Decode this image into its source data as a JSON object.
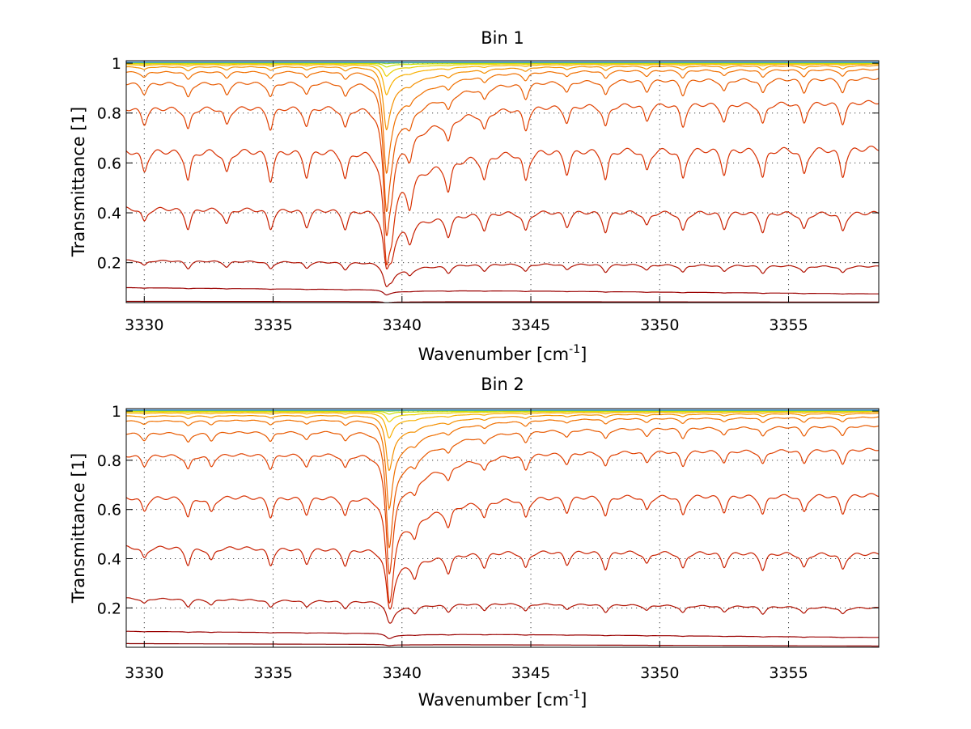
{
  "chart_data": [
    {
      "type": "line",
      "title": "Bin 1",
      "xlabel": "Wavenumber [cm",
      "xlabel_sup": "-1",
      "xlabel_end": "]",
      "ylabel": "Transmittance [1]",
      "xlim": [
        3329.3,
        3358.5
      ],
      "ylim": [
        0.04,
        1.01
      ],
      "xticks": [
        3330,
        3335,
        3340,
        3345,
        3350,
        3355
      ],
      "xtick_labels": [
        "3330",
        "3335",
        "3340",
        "3345",
        "3350",
        "3355"
      ],
      "yticks": [
        0.2,
        0.4,
        0.6,
        0.8,
        1
      ],
      "ytick_labels": [
        "0.2",
        "0.4",
        "0.6",
        "0.8",
        "1"
      ],
      "grid": true,
      "main_line": {
        "center": 3339.4,
        "width": 0.15,
        "tail": 1.8
      },
      "weak_lines": [
        3330.0,
        3331.7,
        3333.2,
        3334.9,
        3336.3,
        3337.8,
        3339.6,
        3340.3,
        3341.8,
        3343.2,
        3344.8,
        3346.4,
        3347.9,
        3349.5,
        3350.9,
        3352.5,
        3354.0,
        3355.6,
        3357.1
      ],
      "series": [
        {
          "base": [
            0.045,
            0.042
          ],
          "depth": 0.0,
          "main": 0.005,
          "color": "#8b0000"
        },
        {
          "base": [
            0.1,
            0.075
          ],
          "depth": 0.002,
          "main": 0.02,
          "color": "#9a0000"
        },
        {
          "base": [
            0.21,
            0.185
          ],
          "depth": 0.03,
          "main": 0.09,
          "color": "#b01000"
        },
        {
          "base": [
            0.42,
            0.4
          ],
          "depth": 0.08,
          "main": 0.22,
          "color": "#c82000"
        },
        {
          "base": [
            0.65,
            0.66
          ],
          "depth": 0.12,
          "main": 0.43,
          "color": "#d83000"
        },
        {
          "base": [
            0.82,
            0.845
          ],
          "depth": 0.09,
          "main": 0.49,
          "color": "#e04000"
        },
        {
          "base": [
            0.92,
            0.94
          ],
          "depth": 0.06,
          "main": 0.5,
          "color": "#e85a00"
        },
        {
          "base": [
            0.965,
            0.975
          ],
          "depth": 0.03,
          "main": 0.4,
          "color": "#f07000"
        },
        {
          "base": [
            0.985,
            0.99
          ],
          "depth": 0.015,
          "main": 0.25,
          "color": "#f49000"
        },
        {
          "base": [
            0.994,
            0.996
          ],
          "depth": 0.006,
          "main": 0.12,
          "color": "#f8b000"
        },
        {
          "base": [
            0.998,
            0.999
          ],
          "depth": 0.003,
          "main": 0.05,
          "color": "#e8d000"
        },
        {
          "base": [
            1.0,
            1.0
          ],
          "depth": 0.001,
          "main": 0.015,
          "color": "#c8e000"
        },
        {
          "base": [
            1.002,
            1.002
          ],
          "depth": 0.0,
          "main": 0.004,
          "color": "#90d040"
        },
        {
          "base": [
            1.003,
            1.003
          ],
          "depth": 0.0,
          "main": 0.0,
          "color": "#40c0a0"
        },
        {
          "base": [
            1.004,
            1.004
          ],
          "depth": 0.0,
          "main": 0.0,
          "color": "#2080d0"
        }
      ]
    },
    {
      "type": "line",
      "title": "Bin 2",
      "xlabel": "Wavenumber [cm",
      "xlabel_sup": "-1",
      "xlabel_end": "]",
      "ylabel": "Transmittance [1]",
      "xlim": [
        3329.3,
        3358.5
      ],
      "ylim": [
        0.04,
        1.01
      ],
      "xticks": [
        3330,
        3335,
        3340,
        3345,
        3350,
        3355
      ],
      "xtick_labels": [
        "3330",
        "3335",
        "3340",
        "3345",
        "3350",
        "3355"
      ],
      "yticks": [
        0.2,
        0.4,
        0.6,
        0.8,
        1
      ],
      "ytick_labels": [
        "0.2",
        "0.4",
        "0.6",
        "0.8",
        "1"
      ],
      "grid": true,
      "main_line": {
        "center": 3339.5,
        "width": 0.15,
        "tail": 1.8
      },
      "weak_lines": [
        3330.0,
        3331.7,
        3332.6,
        3334.9,
        3336.3,
        3337.8,
        3339.6,
        3340.5,
        3341.8,
        3343.2,
        3344.8,
        3346.4,
        3347.9,
        3349.5,
        3350.9,
        3352.5,
        3354.0,
        3355.6,
        3357.1
      ],
      "series": [
        {
          "base": [
            0.055,
            0.045
          ],
          "depth": 0.0,
          "main": 0.005,
          "color": "#8b0000"
        },
        {
          "base": [
            0.105,
            0.08
          ],
          "depth": 0.002,
          "main": 0.02,
          "color": "#9a0000"
        },
        {
          "base": [
            0.24,
            0.2
          ],
          "depth": 0.03,
          "main": 0.07,
          "color": "#b01000"
        },
        {
          "base": [
            0.45,
            0.42
          ],
          "depth": 0.07,
          "main": 0.2,
          "color": "#c82000"
        },
        {
          "base": [
            0.65,
            0.66
          ],
          "depth": 0.08,
          "main": 0.38,
          "color": "#d83000"
        },
        {
          "base": [
            0.82,
            0.845
          ],
          "depth": 0.06,
          "main": 0.45,
          "color": "#e04000"
        },
        {
          "base": [
            0.91,
            0.94
          ],
          "depth": 0.04,
          "main": 0.45,
          "color": "#e85a00"
        },
        {
          "base": [
            0.96,
            0.975
          ],
          "depth": 0.02,
          "main": 0.35,
          "color": "#f07000"
        },
        {
          "base": [
            0.98,
            0.99
          ],
          "depth": 0.01,
          "main": 0.22,
          "color": "#f49000"
        },
        {
          "base": [
            0.992,
            0.996
          ],
          "depth": 0.005,
          "main": 0.1,
          "color": "#f8b000"
        },
        {
          "base": [
            0.997,
            0.999
          ],
          "depth": 0.002,
          "main": 0.04,
          "color": "#e8d000"
        },
        {
          "base": [
            1.0,
            1.0
          ],
          "depth": 0.001,
          "main": 0.012,
          "color": "#c8e000"
        },
        {
          "base": [
            1.002,
            1.002
          ],
          "depth": 0.0,
          "main": 0.003,
          "color": "#90d040"
        },
        {
          "base": [
            1.003,
            1.003
          ],
          "depth": 0.0,
          "main": 0.0,
          "color": "#40c0a0"
        },
        {
          "base": [
            1.004,
            1.004
          ],
          "depth": 0.0,
          "main": 0.0,
          "color": "#2080d0"
        }
      ]
    }
  ]
}
